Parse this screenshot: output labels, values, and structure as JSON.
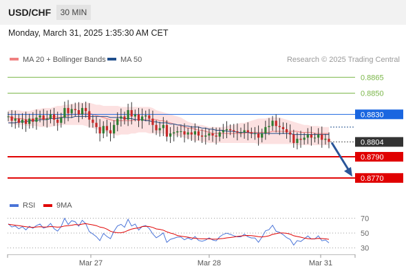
{
  "header": {
    "symbol": "USD/CHF",
    "timeframe": "30 MIN",
    "timestamp": "Monday, March 31, 2025 1:35:30 AM CET"
  },
  "legend": {
    "main": [
      {
        "label": "MA 20 + Bollinger Bands",
        "color": "#f08080"
      },
      {
        "label": "MA 50",
        "color": "#1f4e8c"
      }
    ],
    "osc": [
      {
        "label": "RSI",
        "color": "#4a74d8"
      },
      {
        "label": "9MA",
        "color": "#e00000"
      }
    ]
  },
  "credit": "Research © 2025 Trading Central",
  "chart_data": {
    "type": "candlestick",
    "ylim": [
      0.8755,
      0.8873
    ],
    "x_ticks": [
      "Mar 27",
      "Mar 28",
      "Mar 31"
    ],
    "levels": [
      {
        "value": 0.8865,
        "label": "0.8865",
        "kind": "target",
        "color": "#7ab648"
      },
      {
        "value": 0.885,
        "label": "0.8850",
        "kind": "target",
        "color": "#7ab648"
      },
      {
        "value": 0.883,
        "label": "0.8830",
        "kind": "pivot",
        "color": "#1a66e0"
      },
      {
        "value": 0.8804,
        "label": "0.8804",
        "kind": "last",
        "color": "#333333"
      },
      {
        "value": 0.879,
        "label": "0.8790",
        "kind": "support",
        "color": "#e00000"
      },
      {
        "value": 0.877,
        "label": "0.8770",
        "kind": "support",
        "color": "#e00000"
      }
    ],
    "price": [
      0.8828,
      0.8824,
      0.8826,
      0.8822,
      0.8825,
      0.8821,
      0.8826,
      0.8823,
      0.8827,
      0.8829,
      0.8825,
      0.8826,
      0.883,
      0.8825,
      0.8822,
      0.8827,
      0.8836,
      0.8831,
      0.8835,
      0.8834,
      0.883,
      0.8836,
      0.8833,
      0.8825,
      0.8822,
      0.8818,
      0.8812,
      0.8819,
      0.8815,
      0.8812,
      0.882,
      0.8826,
      0.8828,
      0.8825,
      0.8834,
      0.8828,
      0.883,
      0.8824,
      0.8828,
      0.8829,
      0.8826,
      0.882,
      0.8815,
      0.8817,
      0.882,
      0.8809,
      0.8812,
      0.8813,
      0.8814,
      0.8814,
      0.8811,
      0.8813,
      0.8811,
      0.8814,
      0.881,
      0.8809,
      0.881,
      0.8812,
      0.881,
      0.8809,
      0.8813,
      0.8815,
      0.8816,
      0.8815,
      0.8814,
      0.8813,
      0.8813,
      0.8815,
      0.8813,
      0.8812,
      0.8812,
      0.8808,
      0.8812,
      0.8818,
      0.8819,
      0.8824,
      0.8819,
      0.8818,
      0.8816,
      0.8813,
      0.8811,
      0.8803,
      0.8807,
      0.8806,
      0.8808,
      0.8811,
      0.8808,
      0.8808,
      0.8811,
      0.8806,
      0.8807,
      0.8804
    ],
    "bollinger": {
      "mid": [
        0.8828,
        0.8827,
        0.8826,
        0.8826,
        0.8826,
        0.8825,
        0.8825,
        0.8825,
        0.8826,
        0.8826,
        0.8826,
        0.8826,
        0.8827,
        0.8828,
        0.8827,
        0.8827,
        0.8828,
        0.8829,
        0.883,
        0.883,
        0.883,
        0.8831,
        0.8831,
        0.8831,
        0.883,
        0.8829,
        0.8828,
        0.8827,
        0.8826,
        0.8825,
        0.8824,
        0.8824,
        0.8824,
        0.8824,
        0.8824,
        0.8824,
        0.8825,
        0.8825,
        0.8825,
        0.8825,
        0.8825,
        0.8825,
        0.8825,
        0.8824,
        0.8824,
        0.8823,
        0.8822,
        0.8821,
        0.882,
        0.8819,
        0.8818,
        0.8817,
        0.8817,
        0.8816,
        0.8815,
        0.8815,
        0.8814,
        0.8813,
        0.8812,
        0.8812,
        0.8812,
        0.8812,
        0.8812,
        0.8812,
        0.8812,
        0.8812,
        0.8812,
        0.8812,
        0.8813,
        0.8813,
        0.8813,
        0.8813,
        0.8813,
        0.8813,
        0.8813,
        0.8814,
        0.8814,
        0.8814,
        0.8814,
        0.8814,
        0.8814,
        0.8814,
        0.8814,
        0.8813,
        0.8813,
        0.8813,
        0.8813,
        0.8812,
        0.8812,
        0.8812,
        0.8812,
        0.8812
      ],
      "upper": [
        0.8834,
        0.8834,
        0.8834,
        0.8834,
        0.8833,
        0.8833,
        0.8833,
        0.8834,
        0.8835,
        0.8835,
        0.8836,
        0.8836,
        0.8836,
        0.8837,
        0.8838,
        0.8838,
        0.8839,
        0.8839,
        0.884,
        0.884,
        0.8841,
        0.8841,
        0.8841,
        0.8841,
        0.884,
        0.8839,
        0.8839,
        0.8838,
        0.8838,
        0.8838,
        0.8838,
        0.8838,
        0.8837,
        0.8837,
        0.8837,
        0.8837,
        0.8837,
        0.8837,
        0.8837,
        0.8837,
        0.8837,
        0.8836,
        0.8834,
        0.8833,
        0.8832,
        0.8831,
        0.883,
        0.8829,
        0.8828,
        0.8827,
        0.8825,
        0.8823,
        0.8822,
        0.8821,
        0.882,
        0.882,
        0.8819,
        0.8818,
        0.8818,
        0.8818,
        0.8818,
        0.8818,
        0.8819,
        0.882,
        0.882,
        0.8821,
        0.8822,
        0.8822,
        0.8823,
        0.8824,
        0.8825,
        0.8826,
        0.8826,
        0.8826,
        0.8827,
        0.8827,
        0.8827,
        0.8827,
        0.8826,
        0.8825,
        0.8824,
        0.8823,
        0.8822,
        0.8821,
        0.882,
        0.882,
        0.8819,
        0.8819,
        0.8819,
        0.8818,
        0.8818,
        0.8818
      ],
      "lower": [
        0.8821,
        0.8821,
        0.882,
        0.882,
        0.882,
        0.8819,
        0.8819,
        0.8819,
        0.8819,
        0.8818,
        0.8818,
        0.8818,
        0.8818,
        0.8819,
        0.8819,
        0.882,
        0.882,
        0.882,
        0.882,
        0.882,
        0.882,
        0.882,
        0.8819,
        0.8818,
        0.8817,
        0.8816,
        0.8815,
        0.8814,
        0.8813,
        0.8812,
        0.8811,
        0.881,
        0.8811,
        0.8811,
        0.8811,
        0.8812,
        0.8812,
        0.8813,
        0.8813,
        0.8813,
        0.8812,
        0.8812,
        0.8812,
        0.8812,
        0.8812,
        0.8811,
        0.8811,
        0.881,
        0.881,
        0.8809,
        0.8808,
        0.8807,
        0.8806,
        0.8805,
        0.8805,
        0.8804,
        0.8804,
        0.8803,
        0.8803,
        0.8803,
        0.8803,
        0.8803,
        0.8803,
        0.8803,
        0.8803,
        0.8803,
        0.8803,
        0.8803,
        0.8803,
        0.8803,
        0.8803,
        0.8802,
        0.8802,
        0.8802,
        0.8802,
        0.8802,
        0.8802,
        0.8802,
        0.8802,
        0.8802,
        0.8802,
        0.8802,
        0.8801,
        0.8801,
        0.8801,
        0.8801,
        0.8801,
        0.8801,
        0.8801,
        0.8801,
        0.8801,
        0.8801
      ]
    },
    "ma50": [
      0.8822,
      0.8822,
      0.8822,
      0.8823,
      0.8823,
      0.8823,
      0.8824,
      0.8824,
      0.8824,
      0.8825,
      0.8825,
      0.8825,
      0.8826,
      0.8826,
      0.8826,
      0.8827,
      0.8827,
      0.8827,
      0.8827,
      0.8828,
      0.8828,
      0.8828,
      0.8828,
      0.8828,
      0.8828,
      0.8828,
      0.8828,
      0.8828,
      0.8828,
      0.8827,
      0.8827,
      0.8827,
      0.8827,
      0.8826,
      0.8826,
      0.8826,
      0.8825,
      0.8825,
      0.8825,
      0.8824,
      0.8824,
      0.8823,
      0.8823,
      0.8822,
      0.8822,
      0.8822,
      0.8821,
      0.8821,
      0.882,
      0.882,
      0.8819,
      0.8819,
      0.8818,
      0.8818,
      0.8818,
      0.8817,
      0.8817,
      0.8816,
      0.8816,
      0.8815,
      0.8815,
      0.8815,
      0.8814,
      0.8814,
      0.8814,
      0.8813,
      0.8813,
      0.8813,
      0.8813,
      0.8812,
      0.8812,
      0.8812,
      0.8812,
      0.8812,
      0.8812,
      0.8812,
      0.8812,
      0.8812,
      0.8812,
      0.8812,
      0.8812,
      0.8811,
      0.8811,
      0.8811,
      0.8811,
      0.8811,
      0.8811,
      0.8811,
      0.8811,
      0.8811,
      0.8811,
      0.8811
    ],
    "osc": {
      "ylim": [
        25,
        75
      ],
      "ticks": [
        70,
        50,
        30
      ],
      "rsi": [
        62.5,
        58.2,
        59.4,
        55.7,
        58.6,
        54.3,
        59.2,
        56.5,
        60.2,
        62.1,
        56.7,
        58.2,
        63.0,
        55.8,
        52.6,
        58.8,
        69.9,
        61.6,
        66.7,
        65.2,
        59.3,
        67.2,
        62.4,
        51.9,
        48.8,
        45.2,
        39.8,
        49.5,
        45.4,
        42.5,
        52.3,
        59.5,
        61.8,
        57.8,
        68.6,
        59.5,
        62.1,
        54.0,
        58.8,
        60.2,
        56.2,
        48.9,
        43.7,
        46.6,
        50.3,
        37.5,
        41.6,
        43.0,
        44.5,
        44.5,
        40.9,
        43.5,
        41.0,
        45.4,
        40.1,
        38.9,
        40.6,
        43.5,
        40.7,
        39.5,
        45.0,
        48.2,
        49.8,
        48.2,
        46.5,
        44.9,
        44.9,
        48.5,
        45.1,
        43.4,
        43.4,
        37.6,
        44.5,
        53.0,
        54.5,
        60.6,
        52.4,
        50.9,
        47.9,
        43.9,
        41.4,
        33.8,
        39.9,
        38.6,
        42.2,
        46.1,
        42.0,
        42.0,
        46.3,
        39.6,
        40.7,
        36.8
      ],
      "ma": [
        61.8,
        61.2,
        60.6,
        60.0,
        59.3,
        58.6,
        58.0,
        57.7,
        58.2,
        58.6,
        58.1,
        58.2,
        58.8,
        58.4,
        58.0,
        58.3,
        59.5,
        59.9,
        60.6,
        61.5,
        61.0,
        62.0,
        62.7,
        61.8,
        61.0,
        60.0,
        58.1,
        57.2,
        55.3,
        52.5,
        51.1,
        50.5,
        50.4,
        51.5,
        53.6,
        55.4,
        56.4,
        56.9,
        58.7,
        59.2,
        58.8,
        57.6,
        55.6,
        55.0,
        53.9,
        51.7,
        50.0,
        48.8,
        46.7,
        45.8,
        45.2,
        44.4,
        43.5,
        43.0,
        42.5,
        42.2,
        42.2,
        42.2,
        41.8,
        41.8,
        42.4,
        42.7,
        43.5,
        44.0,
        44.7,
        45.5,
        46.0,
        46.6,
        46.8,
        46.5,
        45.9,
        45.1,
        44.7,
        45.4,
        46.3,
        48.2,
        49.2,
        50.1,
        50.1,
        49.6,
        48.6,
        46.4,
        45.4,
        44.4,
        43.2,
        42.5,
        42.1,
        42.3,
        42.9,
        42.6,
        42.2,
        41.6
      ]
    },
    "forecast": {
      "from": 0.8804,
      "to": 0.877
    }
  }
}
